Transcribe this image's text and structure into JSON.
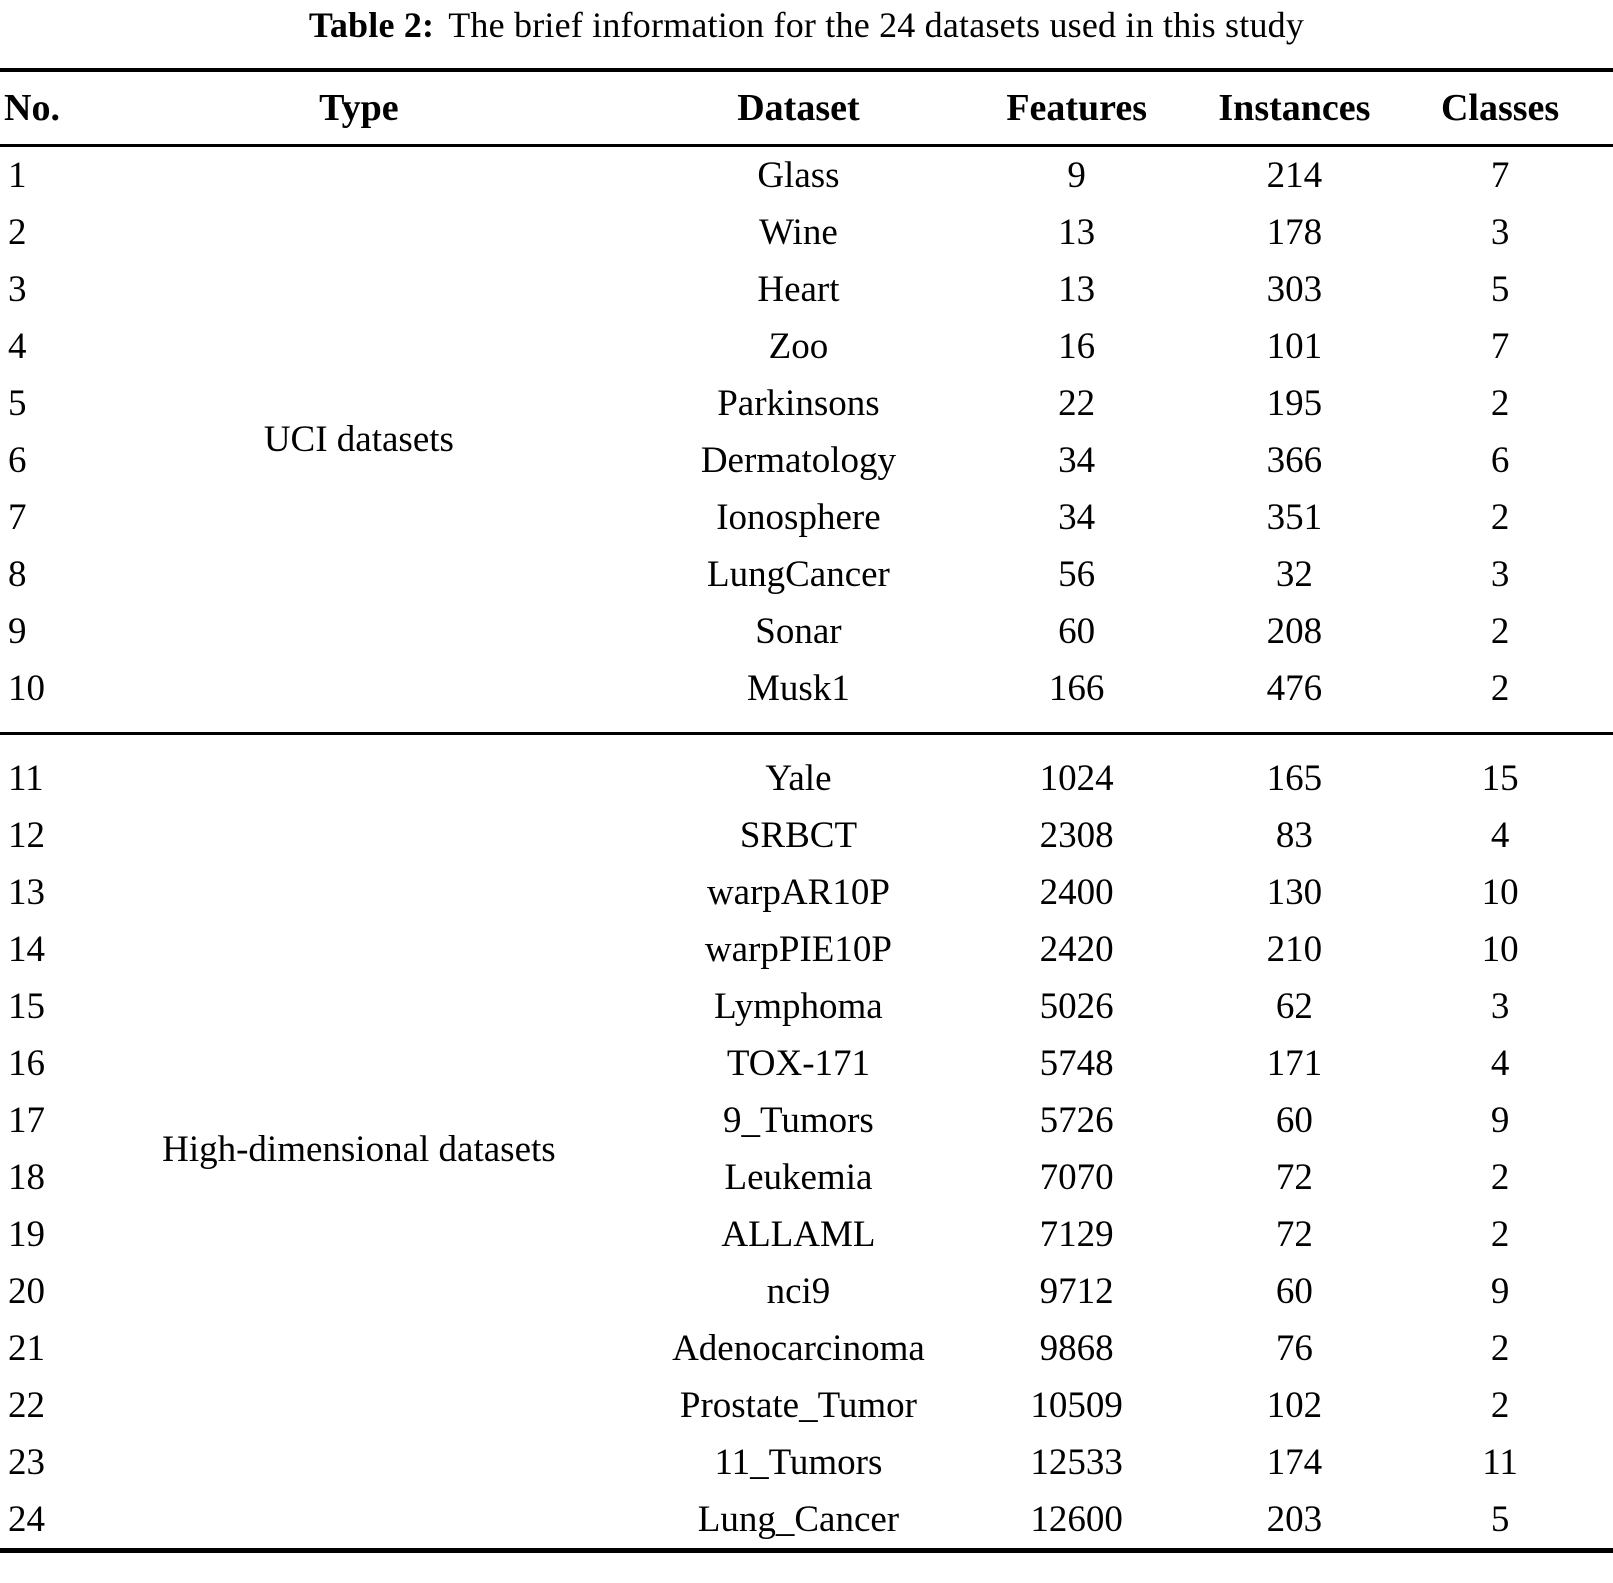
{
  "caption": {
    "label": "Table 2:",
    "text": "The brief information for the 24 datasets used in this study"
  },
  "table": {
    "headers": {
      "no": "No.",
      "type": "Type",
      "dataset": "Dataset",
      "features": "Features",
      "instances": "Instances",
      "classes": "Classes"
    },
    "groups": [
      {
        "type": "UCI datasets",
        "rows": [
          {
            "no": "1",
            "dataset": "Glass",
            "features": "9",
            "instances": "214",
            "classes": "7"
          },
          {
            "no": "2",
            "dataset": "Wine",
            "features": "13",
            "instances": "178",
            "classes": "3"
          },
          {
            "no": "3",
            "dataset": "Heart",
            "features": "13",
            "instances": "303",
            "classes": "5"
          },
          {
            "no": "4",
            "dataset": "Zoo",
            "features": "16",
            "instances": "101",
            "classes": "7"
          },
          {
            "no": "5",
            "dataset": "Parkinsons",
            "features": "22",
            "instances": "195",
            "classes": "2"
          },
          {
            "no": "6",
            "dataset": "Dermatology",
            "features": "34",
            "instances": "366",
            "classes": "6"
          },
          {
            "no": "7",
            "dataset": "Ionosphere",
            "features": "34",
            "instances": "351",
            "classes": "2"
          },
          {
            "no": "8",
            "dataset": "LungCancer",
            "features": "56",
            "instances": "32",
            "classes": "3"
          },
          {
            "no": "9",
            "dataset": "Sonar",
            "features": "60",
            "instances": "208",
            "classes": "2"
          },
          {
            "no": "10",
            "dataset": "Musk1",
            "features": "166",
            "instances": "476",
            "classes": "2"
          }
        ]
      },
      {
        "type": "High-dimensional datasets",
        "rows": [
          {
            "no": "11",
            "dataset": "Yale",
            "features": "1024",
            "instances": "165",
            "classes": "15"
          },
          {
            "no": "12",
            "dataset": "SRBCT",
            "features": "2308",
            "instances": "83",
            "classes": "4"
          },
          {
            "no": "13",
            "dataset": "warpAR10P",
            "features": "2400",
            "instances": "130",
            "classes": "10"
          },
          {
            "no": "14",
            "dataset": "warpPIE10P",
            "features": "2420",
            "instances": "210",
            "classes": "10"
          },
          {
            "no": "15",
            "dataset": "Lymphoma",
            "features": "5026",
            "instances": "62",
            "classes": "3"
          },
          {
            "no": "16",
            "dataset": "TOX-171",
            "features": "5748",
            "instances": "171",
            "classes": "4"
          },
          {
            "no": "17",
            "dataset": "9_Tumors",
            "features": "5726",
            "instances": "60",
            "classes": "9"
          },
          {
            "no": "18",
            "dataset": "Leukemia",
            "features": "7070",
            "instances": "72",
            "classes": "2"
          },
          {
            "no": "19",
            "dataset": "ALLAML",
            "features": "7129",
            "instances": "72",
            "classes": "2"
          },
          {
            "no": "20",
            "dataset": "nci9",
            "features": "9712",
            "instances": "60",
            "classes": "9"
          },
          {
            "no": "21",
            "dataset": "Adenocarcinoma",
            "features": "9868",
            "instances": "76",
            "classes": "2"
          },
          {
            "no": "22",
            "dataset": "Prostate_Tumor",
            "features": "10509",
            "instances": "102",
            "classes": "2"
          },
          {
            "no": "23",
            "dataset": "11_Tumors",
            "features": "12533",
            "instances": "174",
            "classes": "11"
          },
          {
            "no": "24",
            "dataset": "Lung_Cancer",
            "features": "12600",
            "instances": "203",
            "classes": "5"
          }
        ]
      }
    ]
  },
  "colors": {
    "text": "#000000",
    "background": "#ffffff",
    "rule": "#000000"
  }
}
